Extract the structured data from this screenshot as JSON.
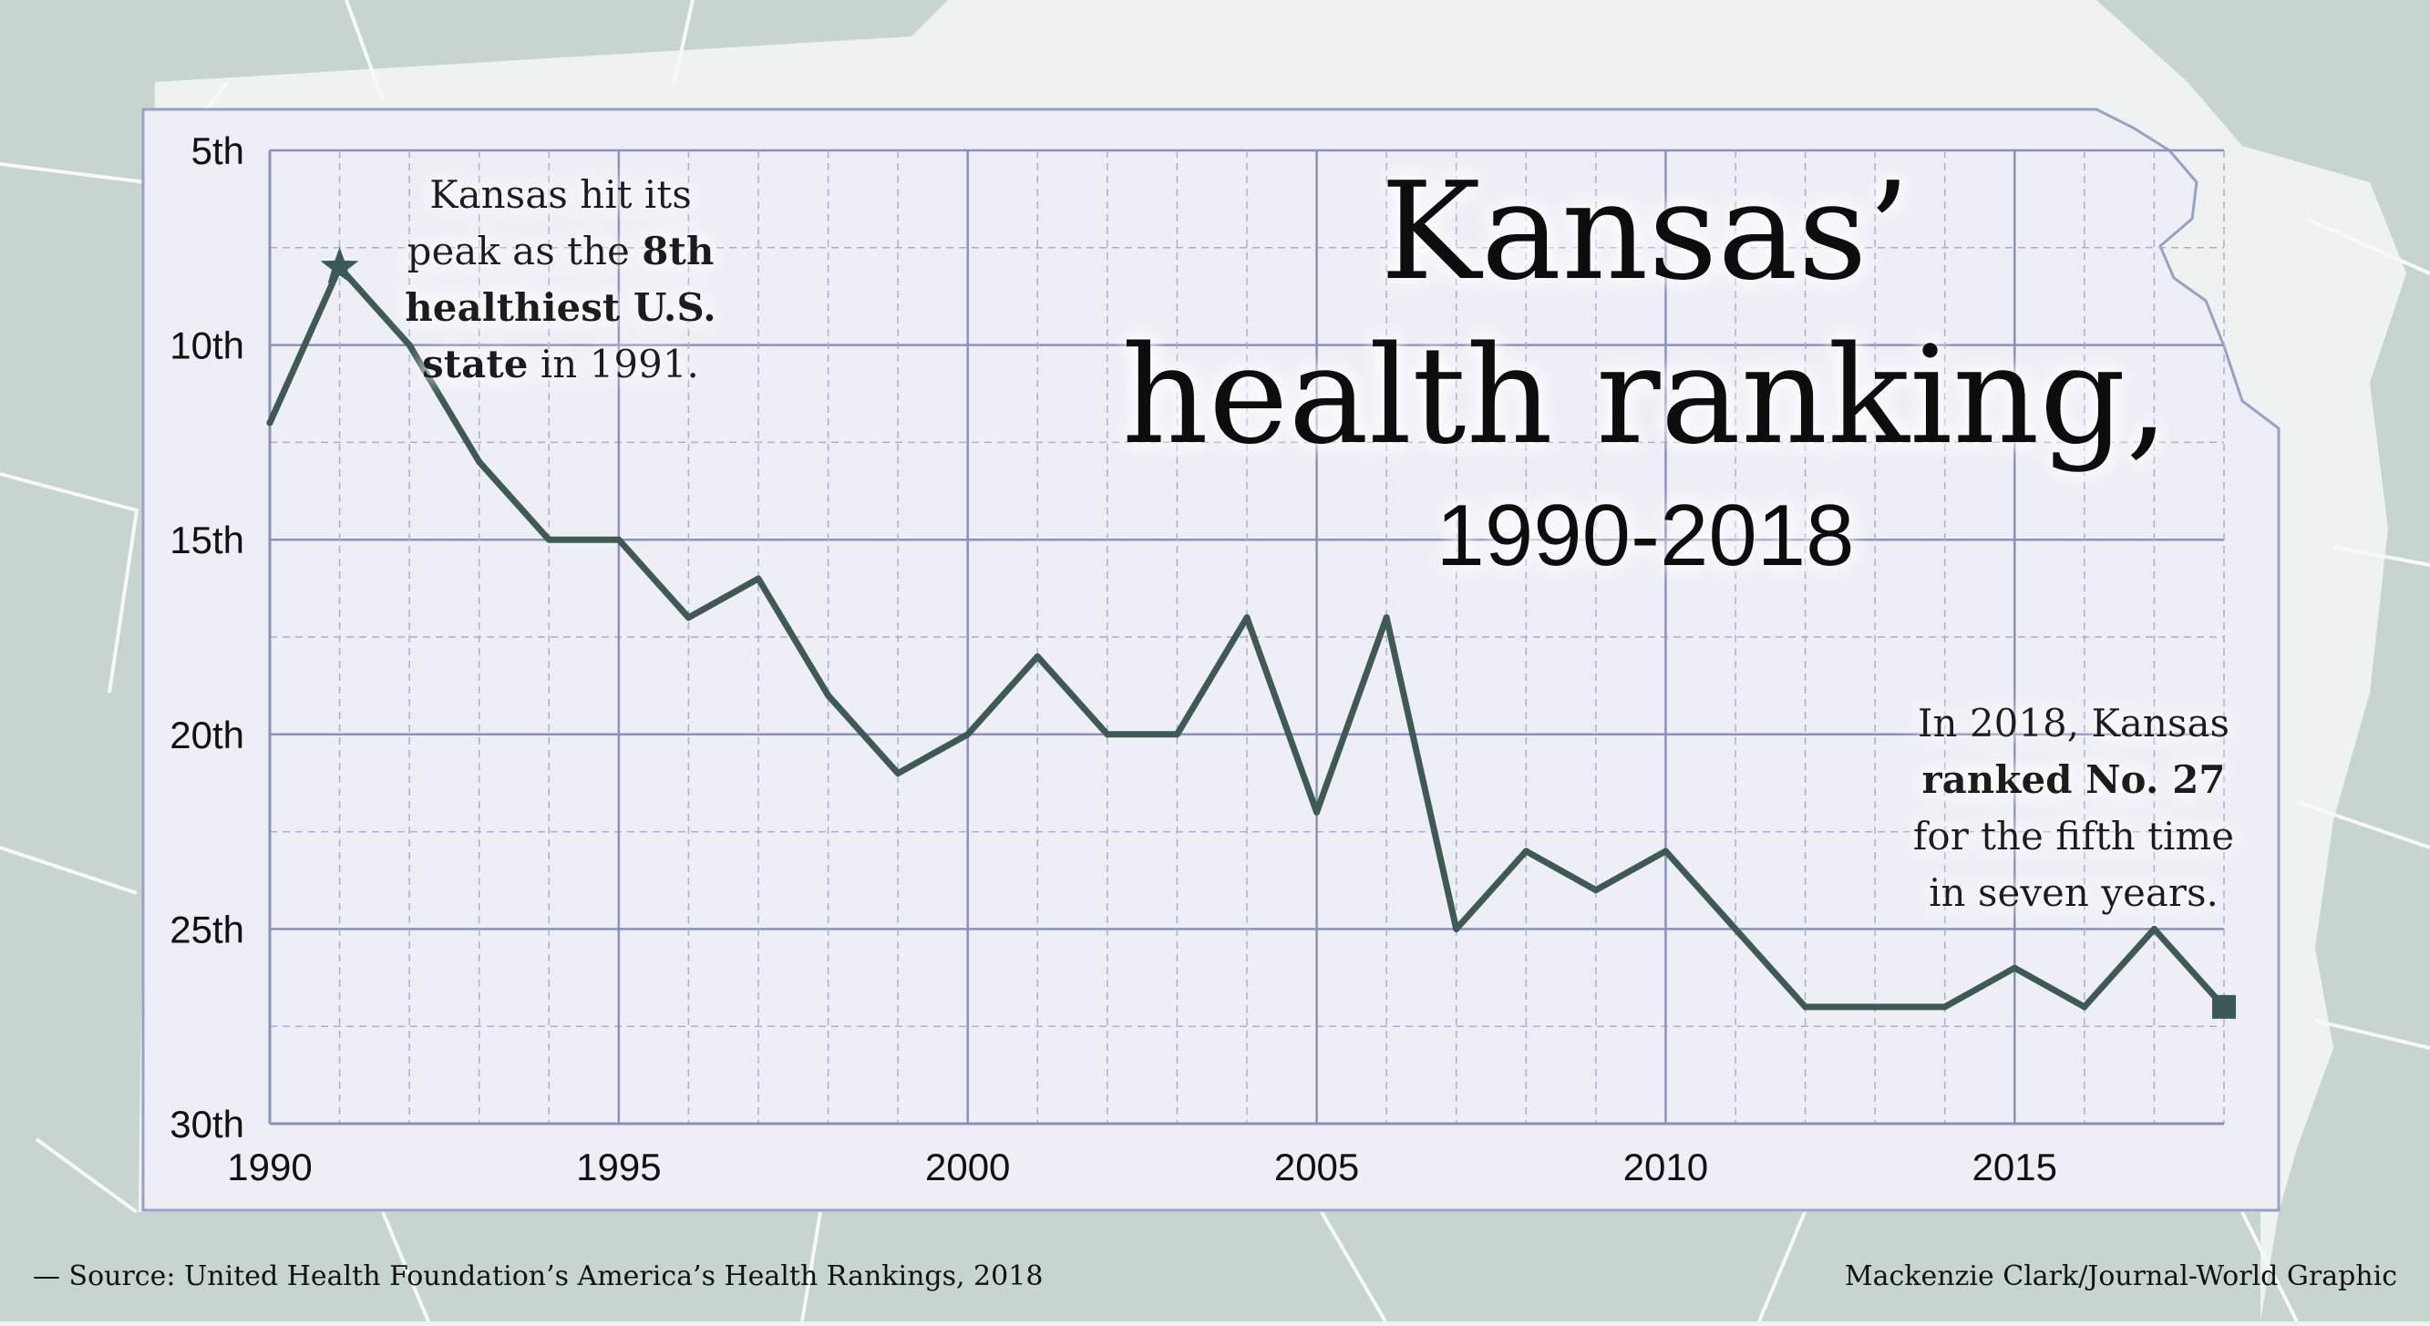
{
  "chart_data": {
    "type": "line",
    "title": "Kansas’",
    "title_line2": "health ranking,",
    "subtitle": "1990-2018",
    "xlabel": "",
    "ylabel": "",
    "xlim": [
      1990,
      2018
    ],
    "ylim": [
      5,
      30
    ],
    "y_inverted": true,
    "grid": true,
    "x_ticks": [
      {
        "value": 1990,
        "label": "1990"
      },
      {
        "value": 1995,
        "label": "1995"
      },
      {
        "value": 2000,
        "label": "2000"
      },
      {
        "value": 2005,
        "label": "2005"
      },
      {
        "value": 2010,
        "label": "2010"
      },
      {
        "value": 2015,
        "label": "2015"
      }
    ],
    "y_ticks": [
      {
        "value": 5,
        "label": "5th"
      },
      {
        "value": 10,
        "label": "10th"
      },
      {
        "value": 15,
        "label": "15th"
      },
      {
        "value": 20,
        "label": "20th"
      },
      {
        "value": 25,
        "label": "25th"
      },
      {
        "value": 30,
        "label": "30th"
      }
    ],
    "series": [
      {
        "name": "Kansas health ranking",
        "color": "#3f5a52",
        "x": [
          1990,
          1991,
          1992,
          1993,
          1994,
          1995,
          1996,
          1997,
          1998,
          1999,
          2000,
          2001,
          2002,
          2003,
          2004,
          2005,
          2006,
          2007,
          2008,
          2009,
          2010,
          2011,
          2012,
          2013,
          2014,
          2015,
          2016,
          2017,
          2018
        ],
        "values": [
          12,
          8,
          10,
          13,
          15,
          15,
          17,
          16,
          19,
          21,
          20,
          18,
          20,
          20,
          17,
          22,
          17,
          25,
          23,
          24,
          23,
          25,
          27,
          27,
          27,
          26,
          27,
          25,
          27
        ]
      }
    ],
    "peak_marker": {
      "year": 1991,
      "value": 8,
      "shape": "star",
      "color": "#3a5a58"
    },
    "end_marker": {
      "year": 2018,
      "value": 27,
      "shape": "square",
      "color": "#3a5a58"
    },
    "annotations": [
      {
        "id": "peak-note",
        "lines": [
          [
            {
              "text": "Kansas hit its",
              "bold": false
            }
          ],
          [
            {
              "text": "peak as the ",
              "bold": false
            },
            {
              "text": "8th",
              "bold": true
            }
          ],
          [
            {
              "text": "healthiest U.S.",
              "bold": true
            }
          ],
          [
            {
              "text": "state",
              "bold": true
            },
            {
              "text": " in 1991.",
              "bold": false
            }
          ]
        ]
      },
      {
        "id": "end-note",
        "lines": [
          [
            {
              "text": "In 2018, Kansas",
              "bold": false
            }
          ],
          [
            {
              "text": "ranked No. 27",
              "bold": true
            }
          ],
          [
            {
              "text": "for the fifth time",
              "bold": false
            }
          ],
          [
            {
              "text": "in seven years.",
              "bold": false
            }
          ]
        ]
      }
    ]
  },
  "footer": {
    "source": "— Source: United Health Foundation’s America’s Health Rankings, 2018",
    "credit": "Mackenzie Clark/Journal-World Graphic"
  },
  "colors": {
    "background": "#eef2f0",
    "map_land": "#c7d4cf",
    "map_border": "#f7f9f8",
    "panel": "#eeeff6",
    "panel_border": "#9aa0c4",
    "grid_major": "#8a90bf",
    "grid_minor": "#a9aed2",
    "line": "#3f5a52",
    "marker": "#3a5a58"
  }
}
